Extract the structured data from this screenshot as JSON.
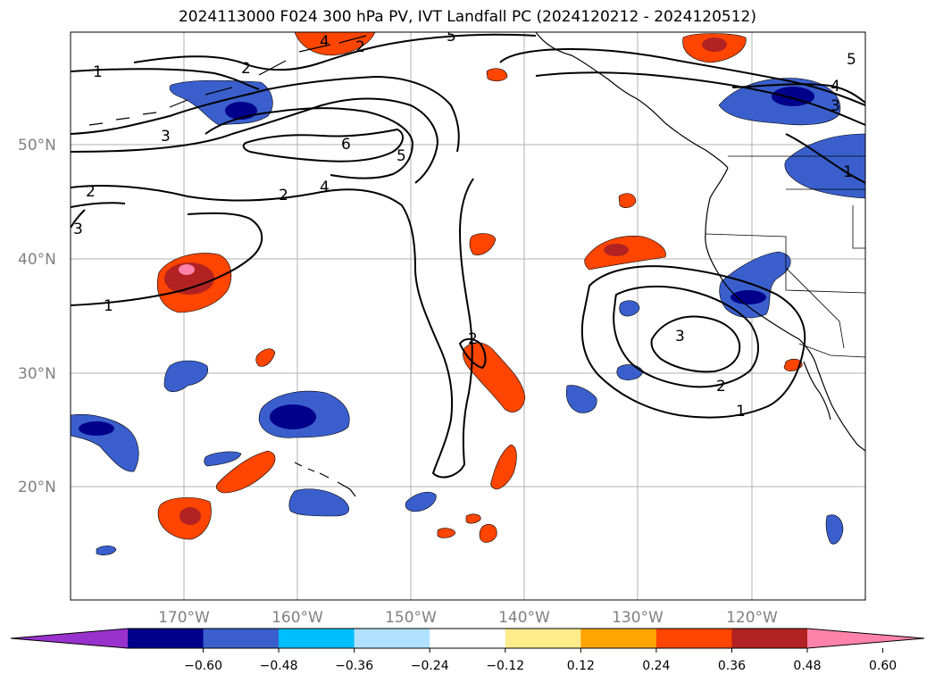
{
  "title": "2024113000 F024 300 hPa PV, IVT Landfall PC (2024120212 - 2024120512)",
  "lat_labels": [
    "50°N",
    "40°N",
    "30°N",
    "20°N"
  ],
  "lon_labels": [
    "170°W",
    "160°W",
    "150°W",
    "140°W",
    "130°W",
    "120°W"
  ],
  "contour_labels": [
    "1",
    "2",
    "2",
    "3",
    "2",
    "4",
    "3",
    "5",
    "6",
    "4",
    "5",
    "2",
    "3",
    "4",
    "5",
    "1",
    "1",
    "2",
    "3",
    "2",
    "1",
    "1",
    "3"
  ],
  "colorbar": {
    "ticks": [
      "−0.60",
      "−0.48",
      "−0.36",
      "−0.24",
      "−0.12",
      "0.12",
      "0.24",
      "0.36",
      "0.48",
      "0.60"
    ],
    "colors": [
      "#9932cc",
      "#00008b",
      "#3a5fcd",
      "#00bfff",
      "#b0e2ff",
      "#ffffff",
      "#ffec8b",
      "#ffa500",
      "#ff4500",
      "#b22222",
      "#ff82ab"
    ]
  }
}
